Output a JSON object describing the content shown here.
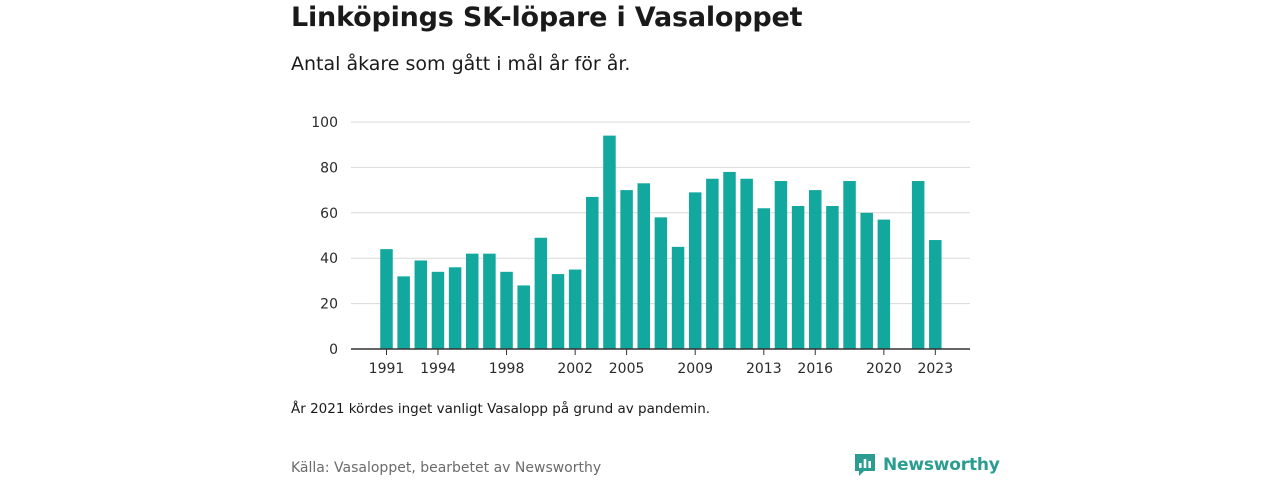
{
  "header": {
    "title": "Linköpings SK-löpare i Vasaloppet",
    "subtitle": "Antal åkare som gått i mål år för år."
  },
  "footer": {
    "note": "År 2021 kördes inget vanligt Vasalopp på grund av pandemin.",
    "source": "Källa: Vasaloppet, bearbetet av Newsworthy",
    "brand": "Newsworthy"
  },
  "colors": {
    "bar": "#13a89e",
    "grid": "#d9d9d9",
    "axis": "#333333",
    "brand": "#2a9d90"
  },
  "icons": {
    "brand": "newsworthy-logo-icon"
  },
  "chart_data": {
    "type": "bar",
    "title": "Linköpings SK-löpare i Vasaloppet",
    "subtitle": "Antal åkare som gått i mål år för år.",
    "xlabel": "",
    "ylabel": "",
    "ylim": [
      0,
      100
    ],
    "yticks": [
      0,
      20,
      40,
      60,
      80,
      100
    ],
    "grid": true,
    "legend": "none",
    "categories": [
      1991,
      1992,
      1993,
      1994,
      1995,
      1996,
      1997,
      1998,
      1999,
      2000,
      2001,
      2002,
      2003,
      2004,
      2005,
      2006,
      2007,
      2008,
      2009,
      2010,
      2011,
      2012,
      2013,
      2014,
      2015,
      2016,
      2017,
      2018,
      2019,
      2020,
      2021,
      2022,
      2023
    ],
    "values": [
      44,
      32,
      39,
      34,
      36,
      42,
      42,
      34,
      28,
      49,
      33,
      35,
      67,
      94,
      70,
      73,
      58,
      45,
      69,
      75,
      78,
      75,
      62,
      74,
      63,
      70,
      63,
      74,
      60,
      57,
      null,
      74,
      48
    ],
    "xtick_labels": [
      "1991",
      "1994",
      "1998",
      "2002",
      "2005",
      "2009",
      "2013",
      "2016",
      "2020",
      "2023"
    ]
  }
}
